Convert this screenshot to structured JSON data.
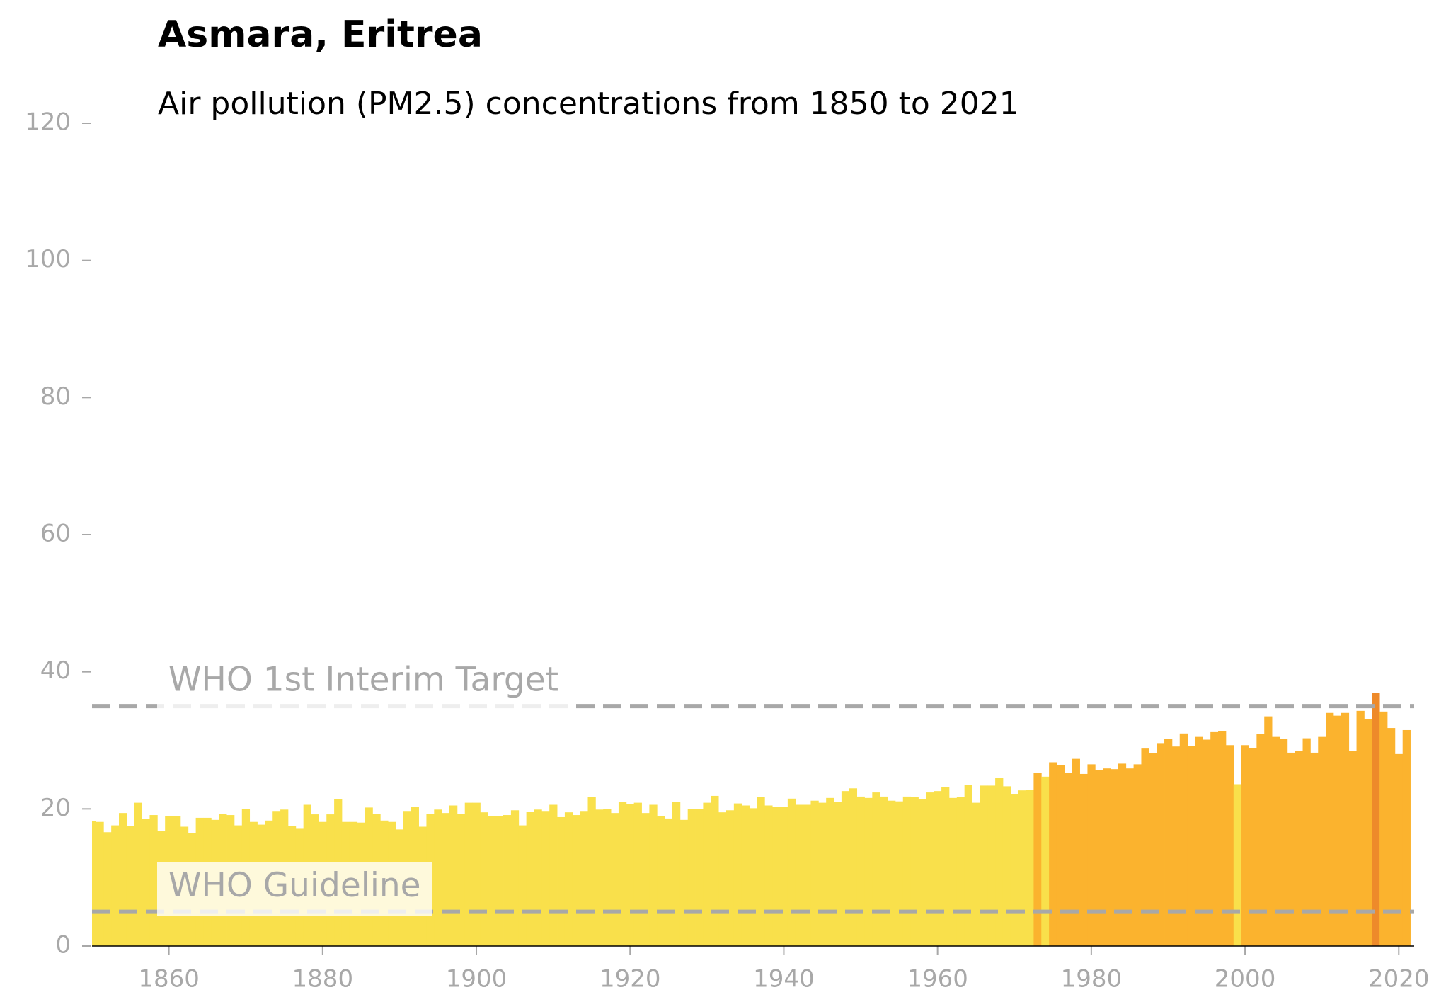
{
  "chart_data": {
    "type": "bar",
    "title": "Asmara, Eritrea",
    "subtitle": "Air pollution (PM2.5) concentrations from 1850 to 2021",
    "x": [
      1850,
      1851,
      1852,
      1853,
      1854,
      1855,
      1856,
      1857,
      1858,
      1859,
      1860,
      1861,
      1862,
      1863,
      1864,
      1865,
      1866,
      1867,
      1868,
      1869,
      1870,
      1871,
      1872,
      1873,
      1874,
      1875,
      1876,
      1877,
      1878,
      1879,
      1880,
      1881,
      1882,
      1883,
      1884,
      1885,
      1886,
      1887,
      1888,
      1889,
      1890,
      1891,
      1892,
      1893,
      1894,
      1895,
      1896,
      1897,
      1898,
      1899,
      1900,
      1901,
      1902,
      1903,
      1904,
      1905,
      1906,
      1907,
      1908,
      1909,
      1910,
      1911,
      1912,
      1913,
      1914,
      1915,
      1916,
      1917,
      1918,
      1919,
      1920,
      1921,
      1922,
      1923,
      1924,
      1925,
      1926,
      1927,
      1928,
      1929,
      1930,
      1931,
      1932,
      1933,
      1934,
      1935,
      1936,
      1937,
      1938,
      1939,
      1940,
      1941,
      1942,
      1943,
      1944,
      1945,
      1946,
      1947,
      1948,
      1949,
      1950,
      1951,
      1952,
      1953,
      1954,
      1955,
      1956,
      1957,
      1958,
      1959,
      1960,
      1961,
      1962,
      1963,
      1964,
      1965,
      1966,
      1967,
      1968,
      1969,
      1970,
      1971,
      1972,
      1973,
      1974,
      1975,
      1976,
      1977,
      1978,
      1979,
      1980,
      1981,
      1982,
      1983,
      1984,
      1985,
      1986,
      1987,
      1988,
      1989,
      1990,
      1991,
      1992,
      1993,
      1994,
      1995,
      1996,
      1997,
      1998,
      1999,
      2000,
      2001,
      2002,
      2003,
      2004,
      2005,
      2006,
      2007,
      2008,
      2009,
      2010,
      2011,
      2012,
      2013,
      2014,
      2015,
      2016,
      2017,
      2018,
      2019,
      2020,
      2021
    ],
    "values": [
      18.2,
      18.1,
      16.6,
      17.6,
      19.4,
      17.5,
      20.9,
      18.5,
      19.1,
      16.8,
      19.0,
      18.9,
      17.4,
      16.5,
      18.7,
      18.7,
      18.4,
      19.3,
      19.1,
      17.6,
      20.0,
      18.1,
      17.7,
      18.3,
      19.7,
      19.9,
      17.5,
      17.2,
      20.6,
      19.2,
      18.1,
      19.2,
      21.4,
      18.1,
      18.1,
      18.0,
      20.2,
      19.3,
      18.3,
      18.1,
      17.0,
      19.7,
      20.3,
      17.4,
      19.3,
      19.9,
      19.4,
      20.5,
      19.3,
      20.9,
      20.9,
      19.5,
      19.0,
      18.9,
      19.1,
      19.8,
      17.6,
      19.6,
      19.9,
      19.7,
      20.6,
      18.8,
      19.5,
      19.1,
      19.7,
      21.7,
      19.9,
      20.0,
      19.4,
      21.0,
      20.7,
      20.9,
      19.4,
      20.6,
      19.0,
      18.6,
      21.0,
      18.4,
      20.0,
      20.0,
      20.9,
      21.9,
      19.5,
      19.8,
      20.8,
      20.5,
      20.1,
      21.7,
      20.5,
      20.3,
      20.3,
      21.5,
      20.6,
      20.6,
      21.2,
      20.9,
      21.6,
      21.0,
      22.6,
      23.0,
      21.8,
      21.6,
      22.4,
      21.8,
      21.2,
      21.1,
      21.8,
      21.7,
      21.4,
      22.4,
      22.6,
      23.2,
      21.6,
      21.7,
      23.5,
      20.9,
      23.4,
      23.4,
      24.5,
      23.3,
      22.2,
      22.7,
      22.8,
      25.3,
      24.7,
      26.8,
      26.4,
      25.2,
      27.3,
      25.1,
      26.5,
      25.7,
      25.9,
      25.8,
      26.6,
      25.9,
      26.5,
      28.8,
      28.1,
      29.6,
      30.2,
      29.1,
      31.0,
      29.2,
      30.5,
      30.1,
      31.2,
      31.3,
      29.3,
      23.6,
      29.3,
      28.9,
      30.9,
      33.5,
      30.5,
      30.2,
      28.2,
      28.4,
      30.3,
      28.2,
      30.5,
      34.0,
      33.6,
      34.0,
      28.4,
      34.3,
      33.1,
      36.9,
      34.2,
      31.8,
      28.0,
      31.5
    ],
    "colors": [
      "#f9e04b",
      "#f9e04b",
      "#f9e04b",
      "#f9e04b",
      "#f9e04b",
      "#f9e04b",
      "#f9e04b",
      "#f9e04b",
      "#f9e04b",
      "#f9e04b",
      "#f9e04b",
      "#f9e04b",
      "#f9e04b",
      "#f9e04b",
      "#f9e04b",
      "#f9e04b",
      "#f9e04b",
      "#f9e04b",
      "#f9e04b",
      "#f9e04b",
      "#f9e04b",
      "#f9e04b",
      "#f9e04b",
      "#f9e04b",
      "#f9e04b",
      "#f9e04b",
      "#f9e04b",
      "#f9e04b",
      "#f9e04b",
      "#f9e04b",
      "#f9e04b",
      "#f9e04b",
      "#f9e04b",
      "#f9e04b",
      "#f9e04b",
      "#f9e04b",
      "#f9e04b",
      "#f9e04b",
      "#f9e04b",
      "#f9e04b",
      "#f9e04b",
      "#f9e04b",
      "#f9e04b",
      "#f9e04b",
      "#f9e04b",
      "#f9e04b",
      "#f9e04b",
      "#f9e04b",
      "#f9e04b",
      "#f9e04b",
      "#f9e04b",
      "#f9e04b",
      "#f9e04b",
      "#f9e04b",
      "#f9e04b",
      "#f9e04b",
      "#f9e04b",
      "#f9e04b",
      "#f9e04b",
      "#f9e04b",
      "#f9e04b",
      "#f9e04b",
      "#f9e04b",
      "#f9e04b",
      "#f9e04b",
      "#f9e04b",
      "#f9e04b",
      "#f9e04b",
      "#f9e04b",
      "#f9e04b",
      "#f9e04b",
      "#f9e04b",
      "#f9e04b",
      "#f9e04b",
      "#f9e04b",
      "#f9e04b",
      "#f9e04b",
      "#f9e04b",
      "#f9e04b",
      "#f9e04b",
      "#f9e04b",
      "#f9e04b",
      "#f9e04b",
      "#f9e04b",
      "#f9e04b",
      "#f9e04b",
      "#f9e04b",
      "#f9e04b",
      "#f9e04b",
      "#f9e04b",
      "#f9e04b",
      "#f9e04b",
      "#f9e04b",
      "#f9e04b",
      "#f9e04b",
      "#f9e04b",
      "#f9e04b",
      "#f9e04b",
      "#f9e04b",
      "#f9e04b",
      "#f9e04b",
      "#f9e04b",
      "#f9e04b",
      "#f9e04b",
      "#f9e04b",
      "#f9e04b",
      "#f9e04b",
      "#f9e04b",
      "#f9e04b",
      "#f9e04b",
      "#f9e04b",
      "#f9e04b",
      "#f9e04b",
      "#f9e04b",
      "#f9e04b",
      "#f9e04b",
      "#f9e04b",
      "#f9e04b",
      "#f9e04b",
      "#f9e04b",
      "#f9e04b",
      "#f9e04b",
      "#f9e04b",
      "#fbb32e",
      "#f9e04b",
      "#fbb32e",
      "#fbb32e",
      "#fbb32e",
      "#fbb32e",
      "#fbb32e",
      "#fbb32e",
      "#fbb32e",
      "#fbb32e",
      "#fbb32e",
      "#fbb32e",
      "#fbb32e",
      "#fbb32e",
      "#fbb32e",
      "#fbb32e",
      "#fbb32e",
      "#fbb32e",
      "#fbb32e",
      "#fbb32e",
      "#fbb32e",
      "#fbb32e",
      "#fbb32e",
      "#fbb32e",
      "#fbb32e",
      "#fbb32e",
      "#f9e04b",
      "#fbb32e",
      "#fbb32e",
      "#fbb32e",
      "#fbb32e",
      "#fbb32e",
      "#fbb32e",
      "#fbb32e",
      "#fbb32e",
      "#fbb32e",
      "#fbb32e",
      "#fbb32e",
      "#fbb32e",
      "#fbb32e",
      "#fbb32e",
      "#fbb32e",
      "#fbb32e",
      "#fbb32e",
      "#ee8a2a",
      "#fbb32e",
      "#fbb32e",
      "#fbb32e",
      "#fbb32e"
    ],
    "xlim": [
      1850,
      2022
    ],
    "ylim": [
      0,
      120
    ],
    "xticks": [
      1860,
      1880,
      1900,
      1920,
      1940,
      1960,
      1980,
      2000,
      2020
    ],
    "yticks": [
      0,
      20,
      40,
      60,
      80,
      100,
      120
    ],
    "reference_lines": [
      {
        "value": 35,
        "label": "WHO 1st Interim Target"
      },
      {
        "value": 5,
        "label": "WHO Guideline"
      }
    ]
  }
}
